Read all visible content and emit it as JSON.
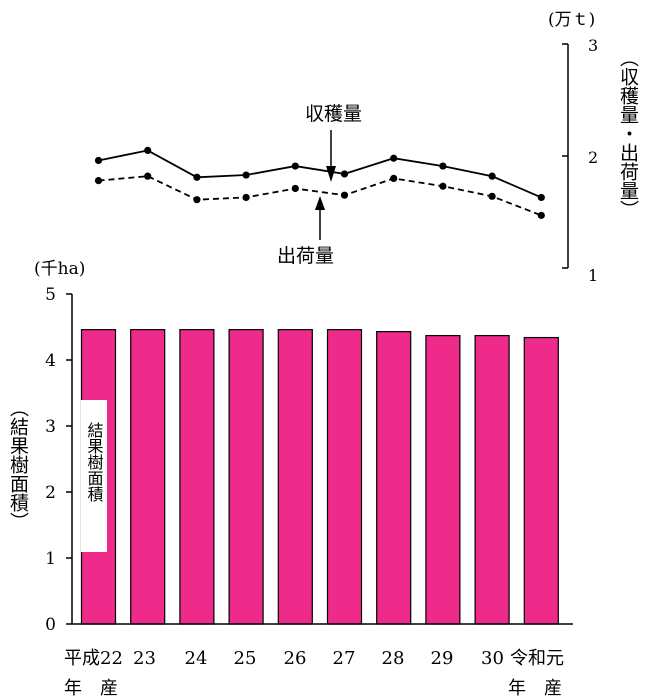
{
  "chart_data": [
    {
      "type": "line",
      "unit_label": "(万ｔ)",
      "ylabel": "（収穫量・出荷量）",
      "ylim": [
        1,
        3
      ],
      "yticks": [
        "1",
        "2",
        "3"
      ],
      "categories": [
        "平成22年産",
        "23",
        "24",
        "25",
        "26",
        "27",
        "28",
        "29",
        "30",
        "令和元年産"
      ],
      "series": [
        {
          "name": "収穫量",
          "line_style": "solid",
          "values": [
            1.96,
            2.05,
            1.81,
            1.83,
            1.91,
            1.84,
            1.98,
            1.91,
            1.82,
            1.63
          ]
        },
        {
          "name": "出荷量",
          "line_style": "dashed",
          "values": [
            1.78,
            1.82,
            1.61,
            1.63,
            1.71,
            1.65,
            1.8,
            1.73,
            1.64,
            1.47
          ]
        }
      ],
      "annotations": [
        "収穫量",
        "出荷量"
      ]
    },
    {
      "type": "bar",
      "unit_label": "(千ha)",
      "ylabel": "（結果樹面積）",
      "ylim": [
        0,
        5
      ],
      "yticks": [
        "0",
        "1",
        "2",
        "3",
        "4",
        "5"
      ],
      "categories": [
        "平成22年産",
        "23",
        "24",
        "25",
        "26",
        "27",
        "28",
        "29",
        "30",
        "令和元年産"
      ],
      "x_tick_labels": [
        "平成22",
        "23",
        "24",
        "25",
        "26",
        "27",
        "28",
        "29",
        "30",
        "令和元"
      ],
      "x_sublabels": {
        "first": "年　産",
        "last": "年　産"
      },
      "series": [
        {
          "name": "結果樹面積",
          "color": "#ee2b8b",
          "values": [
            4.46,
            4.46,
            4.46,
            4.46,
            4.46,
            4.46,
            4.43,
            4.37,
            4.37,
            4.34
          ]
        }
      ],
      "bar_label": "結果樹面積"
    }
  ]
}
